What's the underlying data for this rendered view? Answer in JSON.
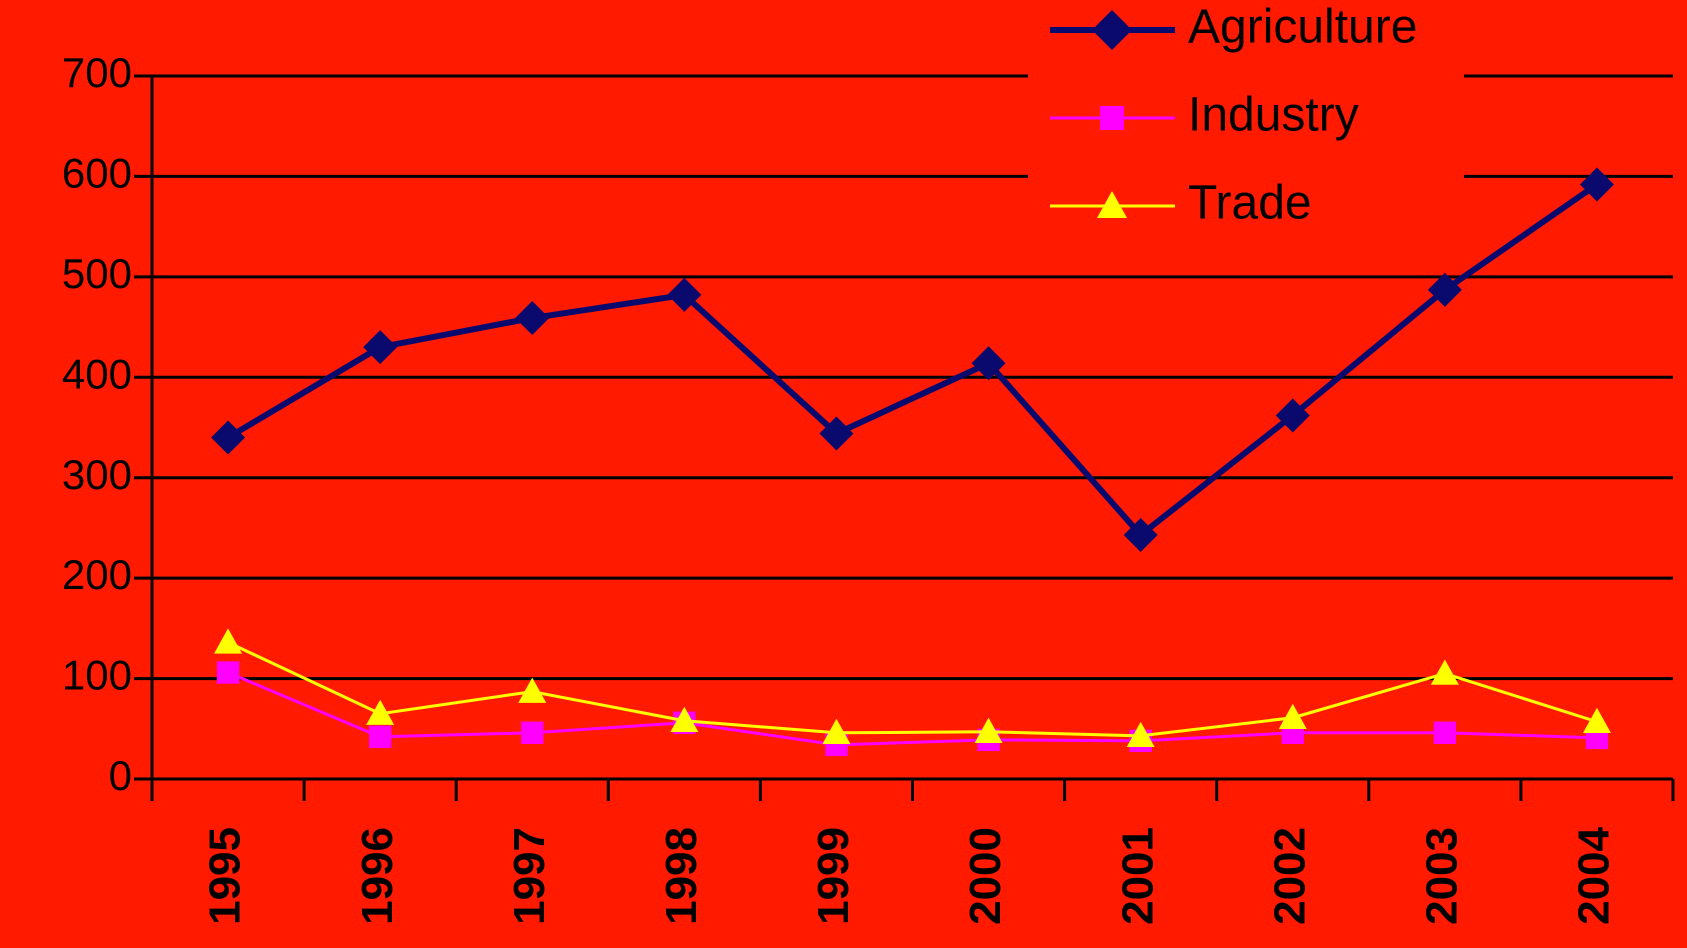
{
  "chart_data": {
    "type": "line",
    "categories": [
      "1995",
      "1996",
      "1997",
      "1998",
      "1999",
      "2000",
      "2001",
      "2002",
      "2003",
      "2004"
    ],
    "series": [
      {
        "name": "Agriculture",
        "color": "#0a0a6e",
        "marker": "diamond",
        "values": [
          340,
          430,
          459,
          482,
          344,
          414,
          243,
          362,
          487,
          592
        ]
      },
      {
        "name": "Industry",
        "color": "#ff00ff",
        "marker": "square",
        "values": [
          106,
          42,
          46,
          56,
          34,
          39,
          38,
          46,
          46,
          41
        ]
      },
      {
        "name": "Trade",
        "color": "#ffff00",
        "marker": "triangle",
        "values": [
          136,
          65,
          87,
          58,
          46,
          47,
          43,
          61,
          105,
          57
        ]
      }
    ],
    "ylim": [
      0,
      700
    ],
    "yticks": [
      0,
      100,
      200,
      300,
      400,
      500,
      600,
      700
    ],
    "grid": true,
    "legend": "top-right"
  }
}
